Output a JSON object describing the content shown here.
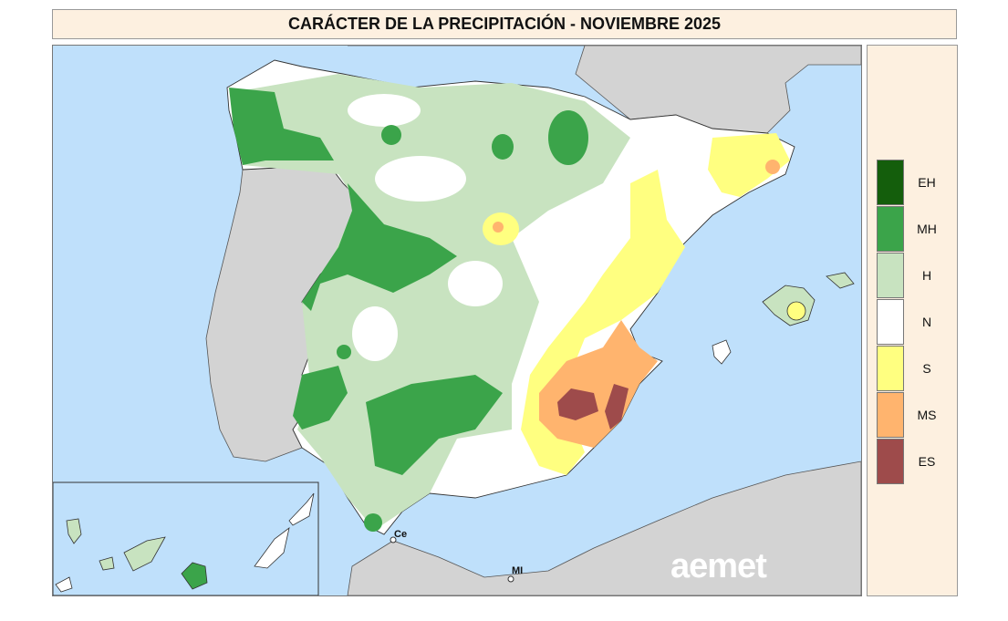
{
  "title": "CARÁCTER DE LA PRECIPITACIÓN - NOVIEMBRE 2025",
  "legend": [
    {
      "code": "EH",
      "color": "#145e0c"
    },
    {
      "code": "MH",
      "color": "#3ba44a"
    },
    {
      "code": "H",
      "color": "#c8e3c0"
    },
    {
      "code": "N",
      "color": "#ffffff"
    },
    {
      "code": "S",
      "color": "#ffff80"
    },
    {
      "code": "MS",
      "color": "#ffb46e"
    },
    {
      "code": "ES",
      "color": "#9e4b4b"
    }
  ],
  "map_labels": {
    "ceuta": "Ce",
    "melilla": "MI"
  },
  "logo": "aemet",
  "colors": {
    "sea": "#bfe0fb",
    "land_other": "#d3d3d3"
  }
}
